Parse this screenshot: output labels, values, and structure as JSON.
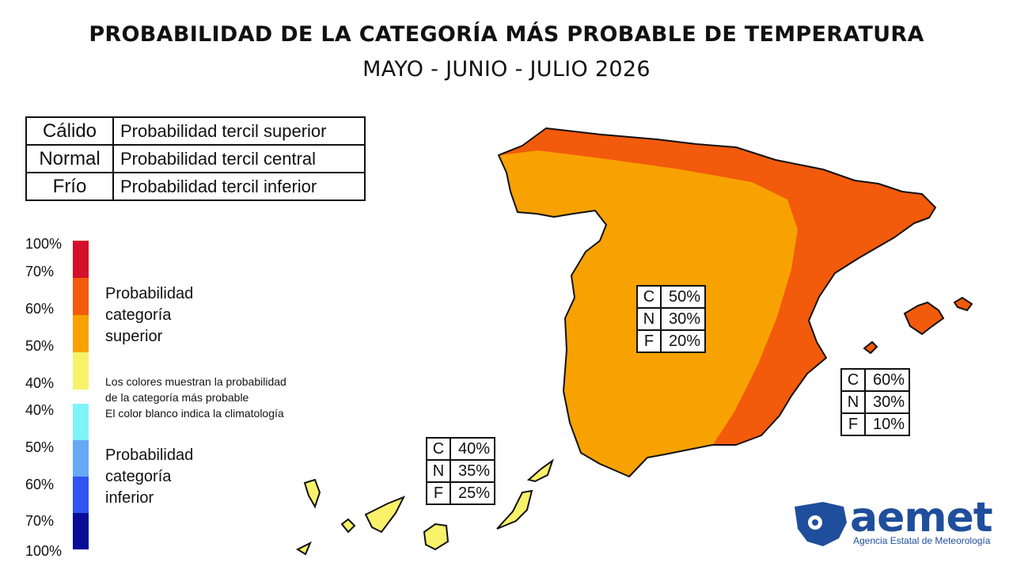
{
  "title": "PROBABILIDAD DE LA CATEGORÍA MÁS PROBABLE DE TEMPERATURA",
  "subtitle": "MAYO - JUNIO - JULIO 2026",
  "category_table": [
    {
      "category": "Cálido",
      "description": "Probabilidad tercil superior"
    },
    {
      "category": "Normal",
      "description": "Probabilidad tercil central"
    },
    {
      "category": "Frío",
      "description": "Probabilidad tercil inferior"
    }
  ],
  "scale": {
    "ticks": [
      "100%",
      "70%",
      "60%",
      "50%",
      "40%",
      "40%",
      "50%",
      "60%",
      "70%",
      "100%"
    ],
    "upper_colors": [
      "#d4102a",
      "#f25a0c",
      "#f7a200",
      "#f8f26a"
    ],
    "lower_colors": [
      "#7ff4f8",
      "#68a9f5",
      "#2f54f0",
      "#0a0d96"
    ],
    "upper_label": "Probabilidad\ncategoría\nsuperior",
    "lower_label": "Probabilidad\ncategoría\ninferior",
    "note_lines": [
      "Los colores muestran la probabilidad",
      "de la categoría más probable",
      "El color blanco indica la climatología"
    ]
  },
  "regions": {
    "center": {
      "C": "50%",
      "N": "30%",
      "F": "20%",
      "color": "#f7a200"
    },
    "east": {
      "C": "60%",
      "N": "30%",
      "F": "10%",
      "color": "#f25a0c"
    },
    "canarias": {
      "C": "40%",
      "N": "35%",
      "F": "25%",
      "color": "#f8f26a"
    }
  },
  "box_letters": {
    "c": "C",
    "n": "N",
    "f": "F"
  },
  "logo": {
    "name": "aemet",
    "subtitle": "Agencia Estatal de Meteorología",
    "color": "#1f4e9c"
  }
}
